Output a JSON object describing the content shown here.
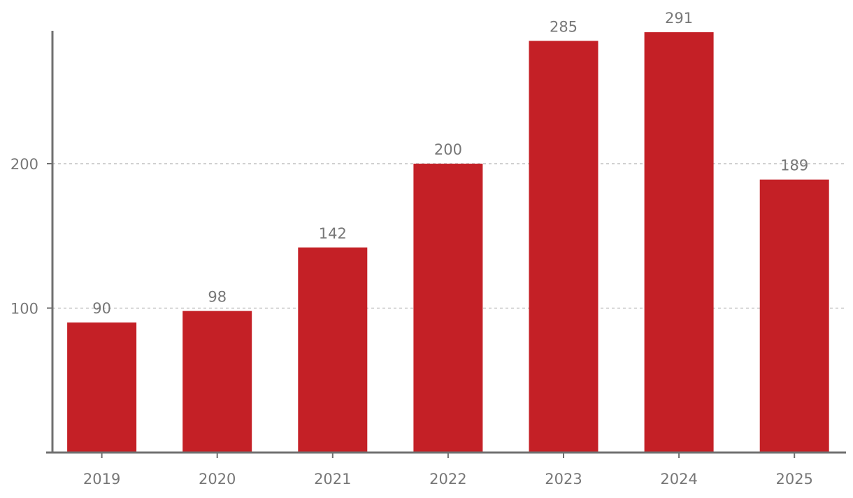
{
  "chart_data": {
    "type": "bar",
    "title": "",
    "xlabel": "",
    "ylabel": "",
    "categories": [
      "2019",
      "2020",
      "2021",
      "2022",
      "2023",
      "2024",
      "2025"
    ],
    "values": [
      90,
      98,
      142,
      200,
      285,
      291,
      189
    ],
    "data_labels": [
      "90",
      "98",
      "142",
      "200",
      "285",
      "291",
      "189"
    ],
    "y_ticks": [
      100,
      200
    ],
    "y_tick_labels": [
      "100",
      "200"
    ],
    "ylim": [
      0,
      292
    ],
    "grid": true,
    "bar_color": "#c42026",
    "text_color": "#777777",
    "axis_color": "#707070",
    "grid_color": "#b5b5b5"
  }
}
